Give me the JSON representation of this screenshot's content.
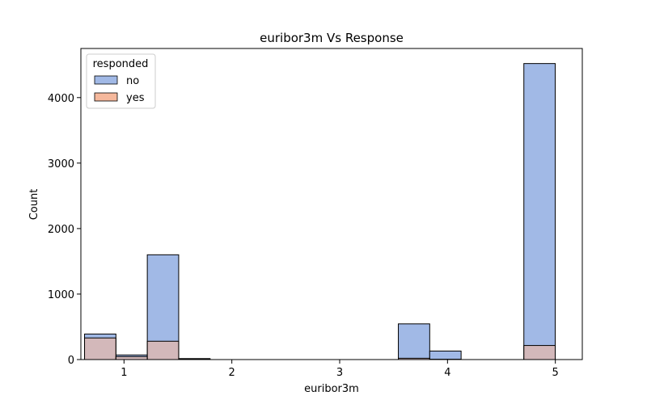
{
  "chart_data": {
    "type": "bar",
    "title": "euribor3m Vs Response",
    "xlabel": "euribor3m",
    "ylabel": "Count",
    "xlim": [
      0.6,
      5.25
    ],
    "ylim": [
      0,
      4750
    ],
    "xticks": [
      1,
      2,
      3,
      4,
      5
    ],
    "yticks": [
      0,
      1000,
      2000,
      3000,
      4000
    ],
    "bin_edges": [
      0.634,
      0.925,
      1.216,
      1.507,
      1.798,
      2.089,
      2.38,
      2.671,
      2.962,
      3.253,
      3.544,
      3.835,
      4.126,
      4.417,
      4.708,
      4.999
    ],
    "legend": {
      "title": "responded",
      "position": "top-left"
    },
    "grid": false,
    "series": [
      {
        "name": "no",
        "color": "#a1b9e6",
        "values": [
          390,
          70,
          1600,
          15,
          0,
          0,
          0,
          0,
          0,
          0,
          545,
          130,
          0,
          0,
          4520
        ]
      },
      {
        "name": "yes",
        "color": "#f5b89c",
        "values": [
          330,
          45,
          280,
          10,
          0,
          0,
          0,
          0,
          0,
          0,
          20,
          5,
          0,
          0,
          215
        ]
      }
    ]
  }
}
